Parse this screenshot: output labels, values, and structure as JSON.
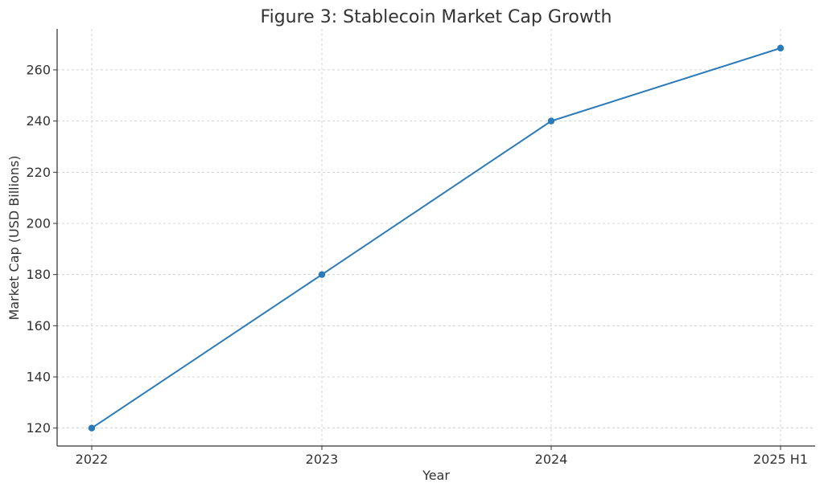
{
  "chart_data": {
    "type": "line",
    "title": "Figure 3: Stablecoin Market Cap Growth",
    "xlabel": "Year",
    "ylabel": "Market Cap (USD Billions)",
    "categories": [
      "2022",
      "2023",
      "2024",
      "2025 H1"
    ],
    "series": [
      {
        "values": [
          120,
          180,
          240,
          268.5
        ],
        "color": "#2b7bba",
        "marker": "circle"
      }
    ],
    "yticks": [
      120,
      140,
      160,
      180,
      200,
      220,
      240,
      260
    ],
    "ylim": [
      113,
      276
    ],
    "grid": true
  }
}
